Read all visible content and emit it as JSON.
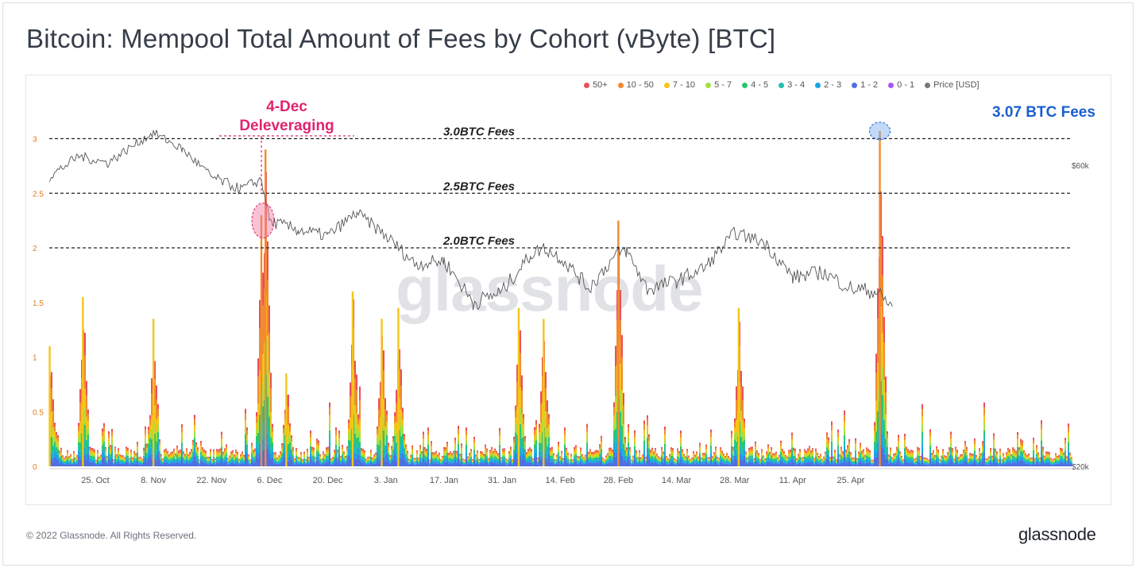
{
  "page": {
    "title": "Bitcoin: Mempool Total Amount of Fees by Cohort (vByte) [BTC]",
    "copyright": "© 2022 Glassnode. All Rights Reserved.",
    "logo_text": "glassnode",
    "watermark_text": "glassnode"
  },
  "chart_data": {
    "type": "area",
    "title": "Bitcoin: Mempool Total Amount of Fees by Cohort (vByte) [BTC]",
    "y_left": {
      "ticks": [
        "0",
        "0.5",
        "1",
        "1.5",
        "2",
        "2.5",
        "3"
      ],
      "range": [
        0,
        3.1
      ]
    },
    "y_right": {
      "ticks": [
        "$20k",
        "$60k"
      ],
      "scale": "log"
    },
    "x_ticks": [
      "25. Oct",
      "8. Nov",
      "22. Nov",
      "6. Dec",
      "20. Dec",
      "3. Jan",
      "17. Jan",
      "31. Jan",
      "14. Feb",
      "28. Feb",
      "14. Mar",
      "28. Mar",
      "11. Apr",
      "25. Apr"
    ],
    "legend": [
      {
        "name": "50+",
        "color": "#e8505b"
      },
      {
        "name": "10 - 50",
        "color": "#f28b30"
      },
      {
        "name": "7 - 10",
        "color": "#f5c518"
      },
      {
        "name": "5 - 7",
        "color": "#a6e03c"
      },
      {
        "name": "4 - 5",
        "color": "#28c76f"
      },
      {
        "name": "3 - 4",
        "color": "#1fbfb0"
      },
      {
        "name": "2 - 3",
        "color": "#1aa3e8"
      },
      {
        "name": "1 - 2",
        "color": "#4f6fe0"
      },
      {
        "name": "0 - 1",
        "color": "#a855f7"
      },
      {
        "name": "Price [USD]",
        "color": "#777777"
      }
    ],
    "reference_lines": [
      {
        "value": 3.0,
        "label": "3.0BTC Fees"
      },
      {
        "value": 2.5,
        "label": "2.5BTC Fees"
      },
      {
        "value": 2.0,
        "label": "2.0BTC Fees"
      }
    ],
    "annotations": [
      {
        "label_line1": "4-Dec",
        "label_line2": "Deleveraging",
        "color": "#e0246e",
        "date": "4. Dec",
        "fee_value": 2.25
      },
      {
        "label": "3.07 BTC Fees",
        "color": "#1a5fd1",
        "date": "2. May",
        "fee_value": 3.07
      }
    ],
    "fee_spikes": [
      {
        "date": "14. Oct",
        "value": 1.1
      },
      {
        "date": "22. Oct",
        "value": 1.55
      },
      {
        "date": "8. Nov",
        "value": 1.35
      },
      {
        "date": "4. Dec",
        "value": 2.3
      },
      {
        "date": "5. Dec",
        "value": 2.9
      },
      {
        "date": "10. Dec",
        "value": 0.85
      },
      {
        "date": "26. Dec",
        "value": 1.6
      },
      {
        "date": "2. Jan",
        "value": 1.35
      },
      {
        "date": "6. Jan",
        "value": 1.45
      },
      {
        "date": "4. Feb",
        "value": 1.45
      },
      {
        "date": "10. Feb",
        "value": 1.35
      },
      {
        "date": "28. Feb",
        "value": 2.25
      },
      {
        "date": "29. Mar",
        "value": 1.45
      },
      {
        "date": "2. May",
        "value": 3.07
      }
    ],
    "price_series": {
      "name": "Price [USD]",
      "dates": [
        "14. Oct",
        "21. Oct",
        "28. Oct",
        "8. Nov",
        "15. Nov",
        "22. Nov",
        "29. Nov",
        "4. Dec",
        "6. Dec",
        "13. Dec",
        "20. Dec",
        "27. Dec",
        "3. Jan",
        "10. Jan",
        "17. Jan",
        "24. Jan",
        "31. Jan",
        "7. Feb",
        "10. Feb",
        "14. Feb",
        "21. Feb",
        "28. Feb",
        "2. Mar",
        "7. Mar",
        "14. Mar",
        "21. Mar",
        "28. Mar",
        "4. Apr",
        "11. Apr",
        "18. Apr",
        "25. Apr",
        "1. May",
        "5. May"
      ],
      "values": [
        57500,
        62000,
        60500,
        67500,
        63500,
        57500,
        55000,
        57000,
        49000,
        47500,
        46500,
        50500,
        46500,
        42000,
        42500,
        36500,
        38000,
        43500,
        44500,
        43000,
        38500,
        43800,
        44000,
        38300,
        39500,
        41500,
        47000,
        45500,
        40000,
        40800,
        38500,
        38000,
        36000
      ]
    }
  }
}
